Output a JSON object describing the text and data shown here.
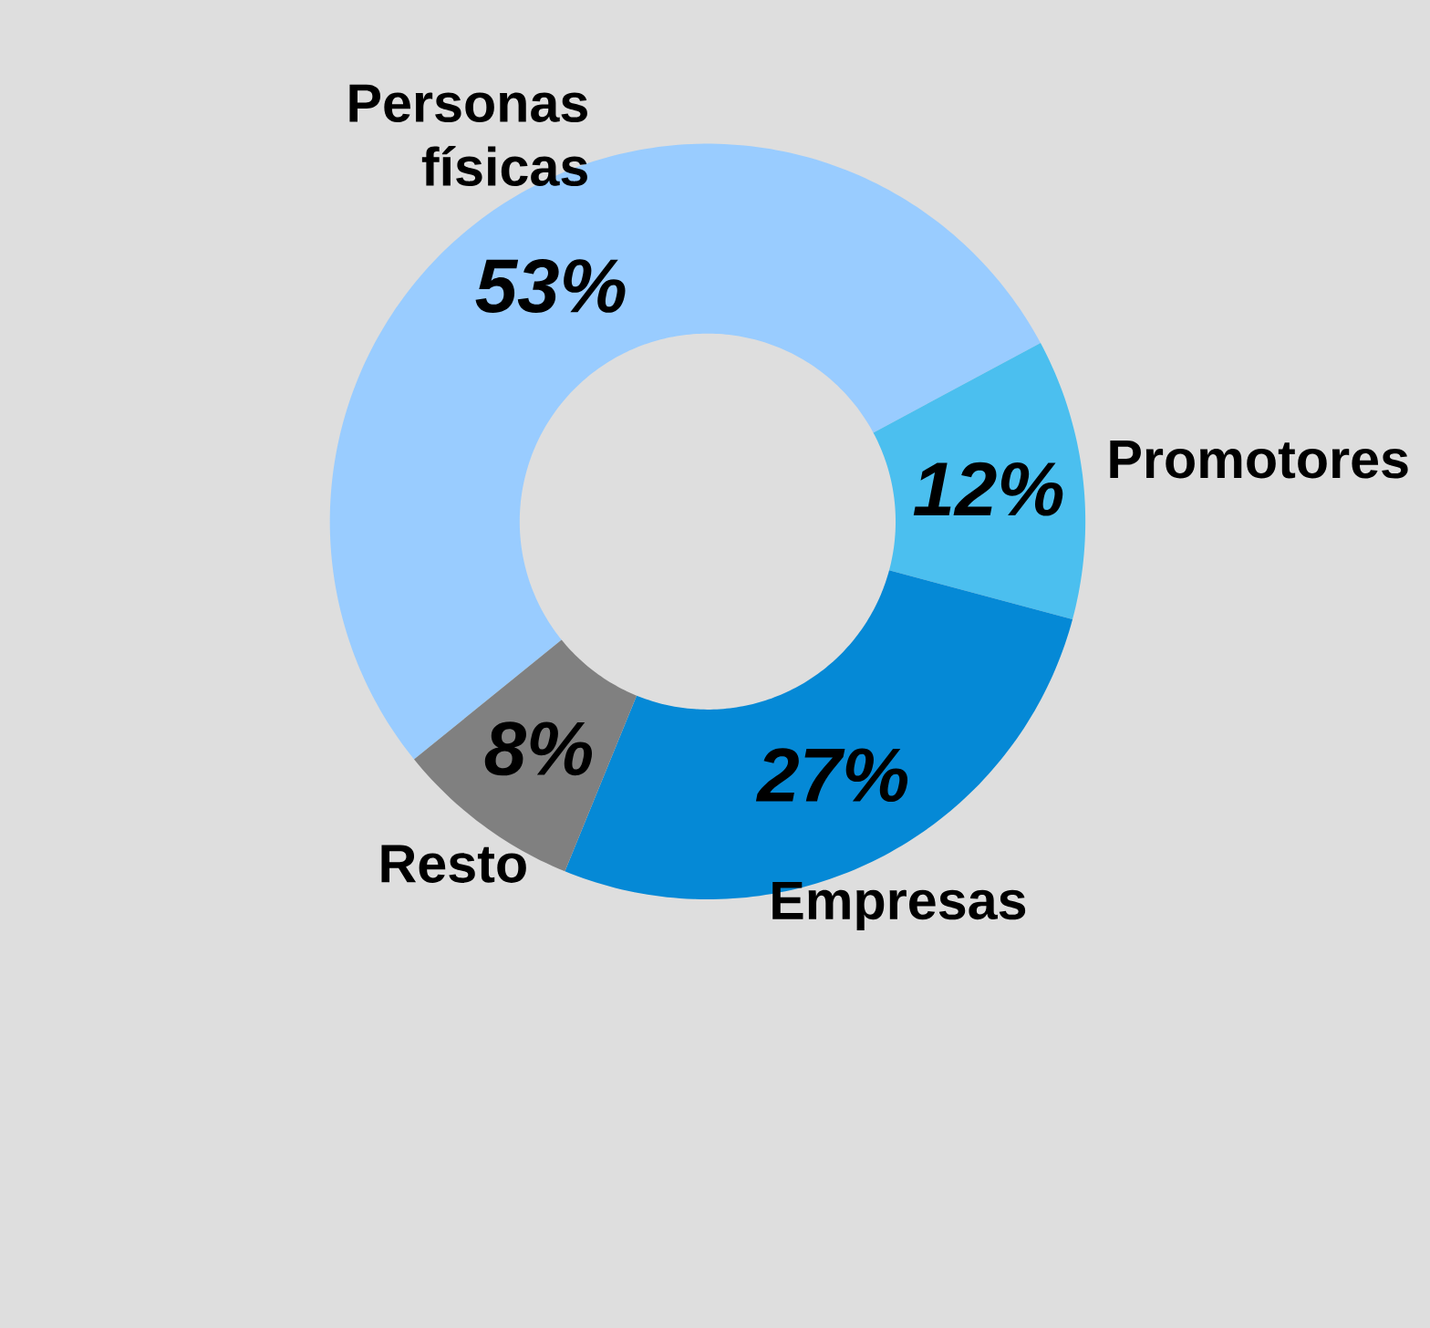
{
  "chart_data": {
    "type": "donut",
    "categories": [
      "Personas físicas",
      "Promotores",
      "Empresas",
      "Resto"
    ],
    "values": [
      53,
      12,
      27,
      8
    ],
    "value_labels": [
      "53%",
      "12%",
      "27%",
      "8%"
    ],
    "colors": [
      "#99ccff",
      "#4bbfef",
      "#0589d6",
      "#808080"
    ]
  }
}
